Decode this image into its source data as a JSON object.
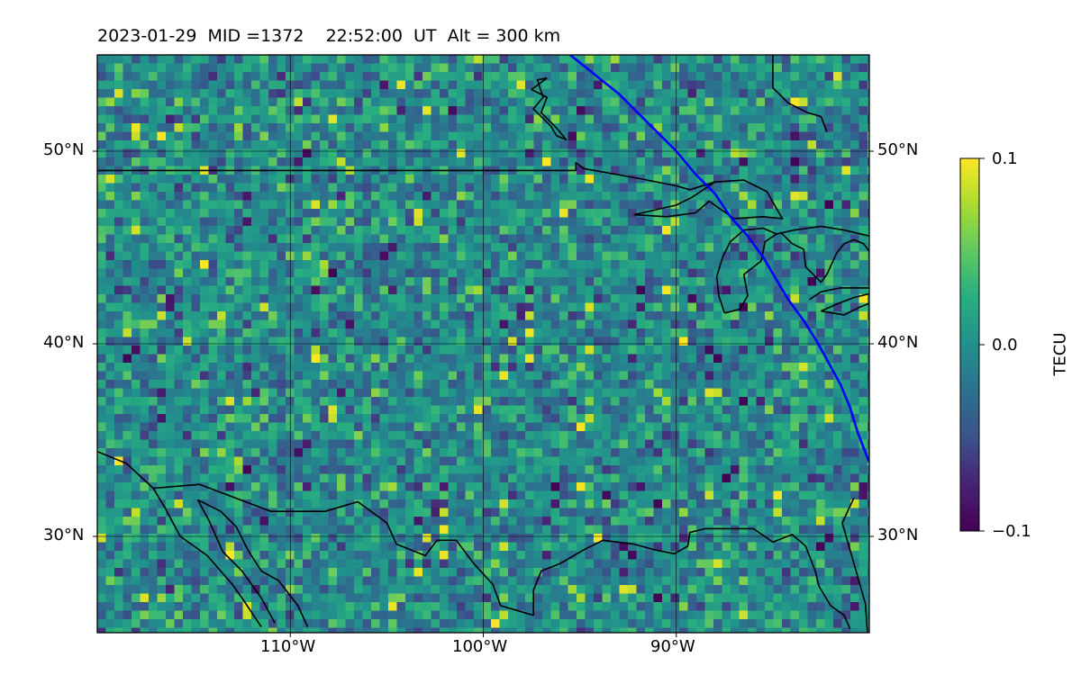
{
  "title": "2023-01-29  MID =1372    22:52:00  UT  Alt = 300 km",
  "map": {
    "lon_range": [
      -120,
      -80
    ],
    "lat_range": [
      25,
      55
    ],
    "lat_ticks": [
      {
        "value": 50,
        "label": "50°N"
      },
      {
        "value": 40,
        "label": "40°N"
      },
      {
        "value": 30,
        "label": "30°N"
      }
    ],
    "lon_ticks": [
      {
        "value": -110,
        "label": "110°W"
      },
      {
        "value": -100,
        "label": "100°W"
      },
      {
        "value": -90,
        "label": "90°W"
      }
    ],
    "grid": true,
    "colormap": "viridis",
    "track_color": "#0000ff",
    "coast_color": "#000000",
    "satellite_track": [
      [
        -95.5,
        55
      ],
      [
        -94.5,
        54.2
      ],
      [
        -93,
        53
      ],
      [
        -91.5,
        51.5
      ],
      [
        -90,
        50
      ],
      [
        -89,
        48.8
      ],
      [
        -88,
        47.8
      ],
      [
        -87.2,
        46.6
      ],
      [
        -86.3,
        45.6
      ],
      [
        -85.5,
        44.5
      ],
      [
        -84.8,
        43.3
      ],
      [
        -84.2,
        42.3
      ],
      [
        -83.4,
        41.2
      ],
      [
        -82.7,
        40.1
      ],
      [
        -82.1,
        39
      ],
      [
        -81.5,
        37.9
      ],
      [
        -81,
        36.7
      ],
      [
        -80.6,
        35.4
      ],
      [
        -80.1,
        34.1
      ],
      [
        -79.6,
        32.9
      ],
      [
        -79.3,
        32
      ]
    ],
    "border_lines": [
      [
        [
          -120,
          49
        ],
        [
          -95.2,
          49
        ],
        [
          -95.2,
          49.4
        ],
        [
          -94.8,
          49.1
        ],
        [
          -92,
          48.6
        ],
        [
          -90,
          48.2
        ],
        [
          -89.3,
          48
        ],
        [
          -88,
          48.4
        ]
      ],
      [
        [
          -120,
          34.4
        ],
        [
          -118.5,
          33.8
        ],
        [
          -117.1,
          32.5
        ],
        [
          -114.7,
          32.7
        ],
        [
          -111,
          31.3
        ],
        [
          -108.2,
          31.3
        ],
        [
          -106.5,
          31.8
        ],
        [
          -105,
          30.7
        ],
        [
          -104.5,
          29.6
        ],
        [
          -103,
          29
        ],
        [
          -102.4,
          29.8
        ],
        [
          -101.4,
          29.8
        ],
        [
          -100.5,
          28.6
        ],
        [
          -99.5,
          27.5
        ],
        [
          -99.1,
          26.4
        ],
        [
          -97.4,
          25.9
        ]
      ],
      [
        [
          -117.1,
          32.5
        ],
        [
          -116.5,
          31.5
        ],
        [
          -115.7,
          30
        ],
        [
          -114.3,
          29
        ],
        [
          -113,
          27.5
        ],
        [
          -112.5,
          26.8
        ],
        [
          -111.5,
          25.3
        ]
      ],
      [
        [
          -114.8,
          31.9
        ],
        [
          -114.2,
          30.8
        ],
        [
          -113.5,
          29.2
        ],
        [
          -112.5,
          28.2
        ],
        [
          -111.5,
          26.8
        ],
        [
          -110.8,
          25.5
        ]
      ],
      [
        [
          -114.8,
          31.9
        ],
        [
          -113.6,
          31.3
        ],
        [
          -112.8,
          30.5
        ],
        [
          -112.2,
          29.3
        ],
        [
          -111.5,
          28.2
        ],
        [
          -110.6,
          27.7
        ],
        [
          -109.6,
          26.4
        ],
        [
          -109.1,
          25.3
        ]
      ],
      [
        [
          -97.4,
          25.9
        ],
        [
          -97.4,
          27.2
        ],
        [
          -97,
          28.2
        ],
        [
          -96,
          28.6
        ],
        [
          -94.8,
          29.3
        ],
        [
          -93.8,
          29.8
        ],
        [
          -92.2,
          29.6
        ],
        [
          -91.1,
          29.3
        ],
        [
          -90.1,
          29.1
        ],
        [
          -89.4,
          29.5
        ],
        [
          -89.3,
          30.2
        ],
        [
          -88.5,
          30.4
        ],
        [
          -87.5,
          30.4
        ],
        [
          -86,
          30.4
        ],
        [
          -85,
          29.7
        ],
        [
          -84,
          30.1
        ],
        [
          -83.3,
          29.5
        ],
        [
          -82.8,
          28.2
        ],
        [
          -82.6,
          27.4
        ],
        [
          -82,
          26.4
        ],
        [
          -81.3,
          25.9
        ],
        [
          -81,
          25.2
        ]
      ],
      [
        [
          -80.1,
          25
        ],
        [
          -80.2,
          26.5
        ],
        [
          -80.8,
          28.6
        ],
        [
          -81.4,
          30.7
        ],
        [
          -80.8,
          32
        ]
      ],
      [
        [
          -85,
          55
        ],
        [
          -85,
          53.3
        ],
        [
          -84.2,
          52.5
        ],
        [
          -83.2,
          52
        ],
        [
          -82.5,
          51.8
        ],
        [
          -82.2,
          51
        ]
      ],
      [
        [
          -96.7,
          53.8
        ],
        [
          -97.5,
          53.2
        ],
        [
          -96.7,
          52.8
        ],
        [
          -97,
          52
        ],
        [
          -96.2,
          51.2
        ],
        [
          -95.7,
          50.6
        ],
        [
          -96.2,
          50.8
        ],
        [
          -96.5,
          51.3
        ],
        [
          -97.4,
          52.2
        ],
        [
          -96.9,
          52.8
        ],
        [
          -97.2,
          53.7
        ],
        [
          -96.7,
          53.8
        ]
      ],
      [
        [
          -92.2,
          46.7
        ],
        [
          -90,
          47.2
        ],
        [
          -89.2,
          47.6
        ],
        [
          -88,
          48.4
        ],
        [
          -86.5,
          48.5
        ],
        [
          -85.3,
          47.9
        ],
        [
          -84.8,
          47
        ],
        [
          -84.5,
          46.5
        ],
        [
          -85.5,
          46.6
        ],
        [
          -87,
          46.5
        ],
        [
          -88.3,
          47.4
        ],
        [
          -89,
          46.8
        ],
        [
          -90.5,
          46.6
        ],
        [
          -92.2,
          46.7
        ]
      ],
      [
        [
          -87.5,
          41.6
        ],
        [
          -87.8,
          42.5
        ],
        [
          -87.9,
          43.5
        ],
        [
          -87.6,
          44.5
        ],
        [
          -87.2,
          45.3
        ],
        [
          -86.5,
          45.9
        ],
        [
          -85.5,
          46
        ],
        [
          -84.8,
          45.7
        ],
        [
          -85.4,
          45.3
        ],
        [
          -85.6,
          44.3
        ],
        [
          -86.5,
          43.6
        ],
        [
          -86.3,
          42.5
        ],
        [
          -86.7,
          41.8
        ],
        [
          -87.5,
          41.6
        ]
      ],
      [
        [
          -84.8,
          45.7
        ],
        [
          -83.9,
          45.9
        ],
        [
          -82.5,
          46.1
        ],
        [
          -81.3,
          45.9
        ],
        [
          -80,
          45.6
        ]
      ],
      [
        [
          -84.6,
          45.8
        ],
        [
          -84,
          45.2
        ],
        [
          -83.4,
          44.9
        ],
        [
          -83.3,
          44
        ],
        [
          -82.5,
          43.2
        ],
        [
          -82.2,
          43.6
        ],
        [
          -81.7,
          44.7
        ],
        [
          -81.3,
          45.2
        ],
        [
          -80.8,
          45.4
        ],
        [
          -80.3,
          45.2
        ],
        [
          -80,
          44.8
        ]
      ],
      [
        [
          -82.5,
          41.7
        ],
        [
          -81.6,
          42.1
        ],
        [
          -80.8,
          42.4
        ],
        [
          -80,
          42.6
        ]
      ],
      [
        [
          -82.5,
          41.7
        ],
        [
          -81.3,
          41.5
        ],
        [
          -80.5,
          41.9
        ],
        [
          -80,
          42.1
        ]
      ],
      [
        [
          -83.1,
          42.3
        ],
        [
          -82.5,
          42.7
        ],
        [
          -81.5,
          42.9
        ],
        [
          -80,
          42.9
        ]
      ]
    ]
  },
  "colorbar": {
    "label": "TECU",
    "ticks": [
      {
        "value": 0.1,
        "label": "0.1"
      },
      {
        "value": 0.0,
        "label": "0.0"
      },
      {
        "value": -0.1,
        "label": "−0.1"
      }
    ]
  }
}
